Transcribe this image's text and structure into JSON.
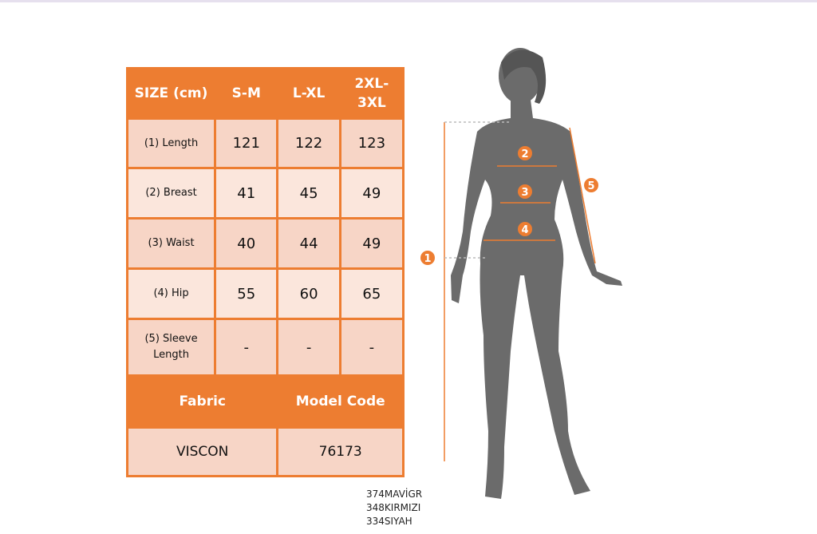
{
  "table": {
    "header": [
      "SIZE (cm)",
      "S-M",
      "L-XL",
      "2XL-3XL"
    ],
    "rows": [
      {
        "label": "(1) Length",
        "values": [
          "121",
          "122",
          "123"
        ]
      },
      {
        "label": "(2) Breast",
        "values": [
          "41",
          "45",
          "49"
        ]
      },
      {
        "label": "(3) Waist",
        "values": [
          "40",
          "44",
          "49"
        ]
      },
      {
        "label": "(4) Hip",
        "values": [
          "55",
          "60",
          "65"
        ]
      },
      {
        "label": "(5) Sleeve Length",
        "values": [
          "-",
          "-",
          "-"
        ]
      }
    ],
    "fabric_label": "Fabric",
    "model_code_label": "Model Code",
    "fabric": "VISCON",
    "model_code": "76173"
  },
  "color_codes": [
    "374MAVİGR",
    "348KIRMIZI",
    "334SIYAH"
  ],
  "markers": [
    "1",
    "2",
    "3",
    "4",
    "5"
  ],
  "colors": {
    "accent": "#ed7d31",
    "row_dark": "#f7d5c6",
    "row_light": "#fbe6dc",
    "silhouette": "#6b6b6b"
  }
}
